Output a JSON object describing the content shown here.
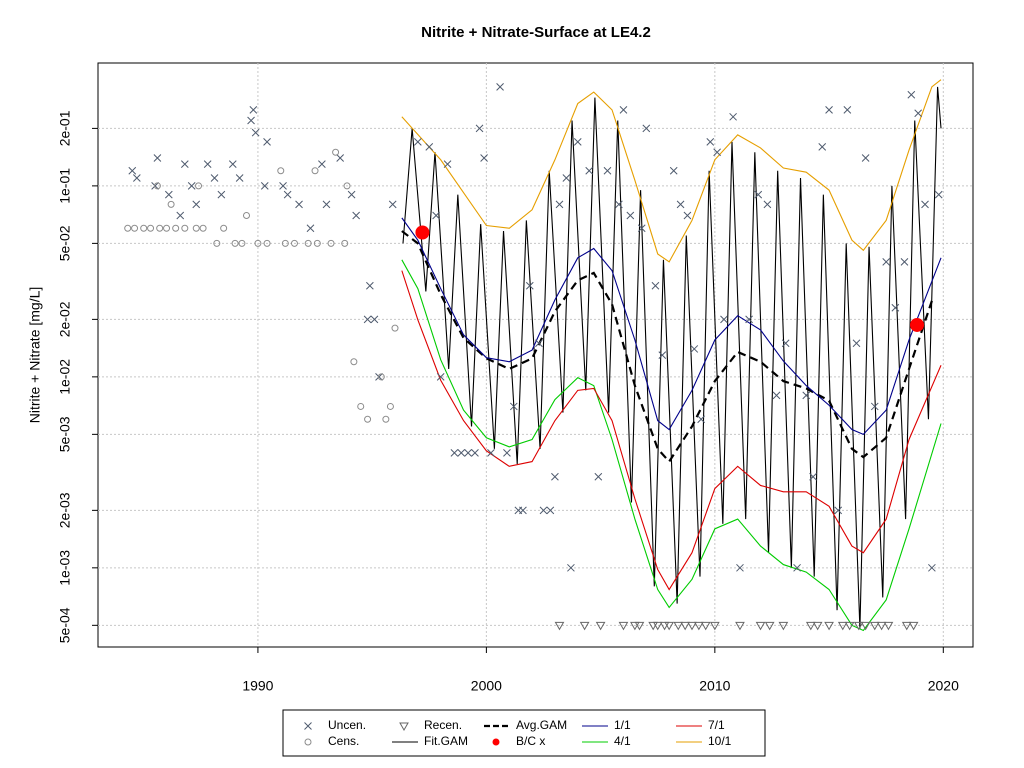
{
  "chart_data": {
    "type": "line",
    "title": "Nitrite + Nitrate-Surface at LE4.2",
    "y_label": "Nitrite + Nitrate [mg/L]",
    "log_y": true,
    "grid": true,
    "xlim": [
      1983,
      2021.3
    ],
    "ylim": [
      0.000385,
      0.44
    ],
    "xticks": [
      1990,
      2000,
      2010,
      2020
    ],
    "yticks": [
      {
        "value": 0.0005,
        "label": "5e-04"
      },
      {
        "value": 0.001,
        "label": "1e-03"
      },
      {
        "value": 0.002,
        "label": "2e-03"
      },
      {
        "value": 0.005,
        "label": "5e-03"
      },
      {
        "value": 0.01,
        "label": "1e-02"
      },
      {
        "value": 0.02,
        "label": "2e-02"
      },
      {
        "value": 0.05,
        "label": "5e-02"
      },
      {
        "value": 0.1,
        "label": "1e-01"
      },
      {
        "value": 0.2,
        "label": "2e-01"
      }
    ],
    "series": [
      {
        "name": "Uncen.",
        "color": "#4f5b6e",
        "style": "points",
        "marker": "x",
        "x": [
          1984.5,
          1984.7,
          1985.5,
          1985.6,
          1986.1,
          1986.6,
          1986.8,
          1987.1,
          1987.3,
          1987.8,
          1988.1,
          1988.4,
          1988.9,
          1989.2,
          1989.7,
          1989.8,
          1989.9,
          1990.3,
          1990.4,
          1991.1,
          1991.3,
          1991.8,
          1992.3,
          1992.8,
          1993.0,
          1993.6,
          1994.1,
          1994.3,
          1994.8,
          1994.9,
          1995.1,
          1995.3,
          1995.9,
          1997.0,
          1997.5,
          1997.8,
          1998.0,
          1998.3,
          1998.6,
          1998.9,
          1999.2,
          1999.5,
          1999.7,
          1999.9,
          2000.2,
          2000.6,
          2000.9,
          2001.2,
          2001.4,
          2001.6,
          2001.9,
          2002.3,
          2002.5,
          2002.8,
          2003.0,
          2003.2,
          2003.5,
          2003.7,
          2004.0,
          2004.5,
          2004.9,
          2005.3,
          2005.8,
          2006.0,
          2006.3,
          2006.8,
          2007.0,
          2007.4,
          2007.7,
          2008.2,
          2008.5,
          2008.8,
          2009.1,
          2009.4,
          2009.8,
          2010.1,
          2010.4,
          2010.8,
          2011.1,
          2011.5,
          2011.9,
          2012.3,
          2012.7,
          2013.1,
          2013.6,
          2014.0,
          2014.3,
          2014.7,
          2015.0,
          2015.4,
          2015.8,
          2016.2,
          2016.6,
          2017.0,
          2017.5,
          2017.9,
          2018.3,
          2018.6,
          2018.9,
          2019.2,
          2019.5,
          2019.8
        ],
        "values": [
          0.12,
          0.11,
          0.1,
          0.14,
          0.09,
          0.07,
          0.13,
          0.1,
          0.08,
          0.13,
          0.11,
          0.09,
          0.13,
          0.11,
          0.22,
          0.25,
          0.19,
          0.1,
          0.17,
          0.1,
          0.09,
          0.08,
          0.06,
          0.13,
          0.08,
          0.14,
          0.09,
          0.07,
          0.02,
          0.03,
          0.02,
          0.01,
          0.08,
          0.17,
          0.16,
          0.07,
          0.01,
          0.13,
          0.004,
          0.004,
          0.004,
          0.004,
          0.2,
          0.14,
          0.004,
          0.33,
          0.004,
          0.007,
          0.002,
          0.002,
          0.03,
          0.015,
          0.002,
          0.002,
          0.003,
          0.08,
          0.11,
          0.001,
          0.17,
          0.12,
          0.003,
          0.12,
          0.08,
          0.25,
          0.07,
          0.06,
          0.2,
          0.03,
          0.013,
          0.12,
          0.08,
          0.07,
          0.014,
          0.006,
          0.17,
          0.15,
          0.02,
          0.23,
          0.001,
          0.02,
          0.09,
          0.08,
          0.008,
          0.015,
          0.001,
          0.008,
          0.003,
          0.16,
          0.25,
          0.002,
          0.25,
          0.015,
          0.14,
          0.007,
          0.04,
          0.023,
          0.04,
          0.3,
          0.24,
          0.08,
          0.001,
          0.09
        ]
      },
      {
        "name": "Cens.",
        "color": "#8c8c8c",
        "style": "points",
        "marker": "circle",
        "x": [
          1984.3,
          1984.6,
          1985.0,
          1985.3,
          1985.7,
          1986.0,
          1986.4,
          1986.8,
          1987.3,
          1987.6,
          1988.2,
          1989.0,
          1989.3,
          1990.0,
          1990.4,
          1991.2,
          1991.6,
          1992.2,
          1992.6,
          1993.2,
          1993.8,
          1985.6,
          1986.2,
          1987.4,
          1988.5,
          1989.5,
          1991.0,
          1992.5,
          1993.4,
          1993.9,
          1994.2,
          1994.5,
          1994.8,
          1995.4,
          1995.6,
          1995.8,
          1996.0
        ],
        "values": [
          0.06,
          0.06,
          0.06,
          0.06,
          0.06,
          0.06,
          0.06,
          0.06,
          0.06,
          0.06,
          0.05,
          0.05,
          0.05,
          0.05,
          0.05,
          0.05,
          0.05,
          0.05,
          0.05,
          0.05,
          0.05,
          0.1,
          0.08,
          0.1,
          0.06,
          0.07,
          0.12,
          0.12,
          0.15,
          0.1,
          0.012,
          0.007,
          0.006,
          0.01,
          0.006,
          0.007,
          0.018
        ]
      },
      {
        "name": "Recen.",
        "color": "#666666",
        "style": "points",
        "marker": "triangle",
        "x": [
          2003.2,
          2004.3,
          2005.0,
          2006.0,
          2006.5,
          2006.7,
          2007.3,
          2007.5,
          2007.8,
          2008.0,
          2008.4,
          2008.7,
          2009.0,
          2009.3,
          2009.6,
          2010.0,
          2011.1,
          2012.0,
          2012.4,
          2013.0,
          2014.2,
          2014.5,
          2015.0,
          2015.6,
          2015.9,
          2016.3,
          2016.6,
          2017.0,
          2017.3,
          2017.6,
          2018.4,
          2018.7
        ],
        "values": [
          0.0005,
          0.0005,
          0.0005,
          0.0005,
          0.0005,
          0.0005,
          0.0005,
          0.0005,
          0.0005,
          0.0005,
          0.0005,
          0.0005,
          0.0005,
          0.0005,
          0.0005,
          0.0005,
          0.0005,
          0.0005,
          0.0005,
          0.0005,
          0.0005,
          0.0005,
          0.0005,
          0.0005,
          0.0005,
          0.0005,
          0.0005,
          0.0005,
          0.0005,
          0.0005,
          0.0005,
          0.0005
        ]
      },
      {
        "name": "Fit.GAM",
        "color": "#000000",
        "style": "line",
        "x": [
          1996.35,
          1996.75,
          1997.35,
          1997.75,
          1998.35,
          1998.75,
          1999.35,
          1999.75,
          2000.35,
          2000.75,
          2001.35,
          2001.75,
          2002.35,
          2002.75,
          2003.35,
          2003.75,
          2004.35,
          2004.75,
          2005.35,
          2005.75,
          2006.35,
          2006.75,
          2007.35,
          2007.75,
          2008.35,
          2008.75,
          2009.35,
          2009.75,
          2010.35,
          2010.75,
          2011.35,
          2011.75,
          2012.35,
          2012.75,
          2013.35,
          2013.75,
          2014.35,
          2014.75,
          2015.35,
          2015.75,
          2016.35,
          2016.75,
          2017.35,
          2017.75,
          2018.35,
          2018.75,
          2019.35,
          2019.75,
          2019.9
        ],
        "values": [
          0.05,
          0.2,
          0.028,
          0.15,
          0.011,
          0.09,
          0.0055,
          0.063,
          0.0042,
          0.058,
          0.0035,
          0.066,
          0.0042,
          0.12,
          0.0065,
          0.22,
          0.0085,
          0.29,
          0.0065,
          0.22,
          0.0022,
          0.095,
          0.0008,
          0.041,
          0.00065,
          0.055,
          0.0009,
          0.12,
          0.0017,
          0.17,
          0.0018,
          0.15,
          0.0012,
          0.12,
          0.001,
          0.11,
          0.0009,
          0.09,
          0.0006,
          0.05,
          0.00048,
          0.048,
          0.0007,
          0.1,
          0.0018,
          0.22,
          0.006,
          0.33,
          0.2
        ]
      },
      {
        "name": "Avg.GAM",
        "color": "#000000",
        "style": "line",
        "dash": true,
        "x": [
          1996.3,
          1997,
          1998,
          1999,
          2000,
          2001,
          2002,
          2003,
          2004,
          2004.7,
          2005.5,
          2006.5,
          2007.5,
          2008,
          2009,
          2010,
          2011,
          2012,
          2013,
          2014,
          2015,
          2016,
          2016.5,
          2017.5,
          2018.5,
          2019.5
        ],
        "values": [
          0.058,
          0.05,
          0.027,
          0.016,
          0.0125,
          0.011,
          0.0125,
          0.022,
          0.032,
          0.035,
          0.024,
          0.009,
          0.0042,
          0.0036,
          0.0055,
          0.0095,
          0.0135,
          0.012,
          0.0095,
          0.0087,
          0.0075,
          0.0042,
          0.0038,
          0.0048,
          0.011,
          0.025
        ]
      },
      {
        "name": "B/C x",
        "color": "#ff0000",
        "style": "points",
        "marker": "dot",
        "x": [
          1997.2,
          2018.85
        ],
        "values": [
          0.057,
          0.0187
        ]
      },
      {
        "name": "1/1",
        "color": "#00008b",
        "style": "line",
        "x": [
          1996.3,
          1997,
          1998,
          1999,
          2000,
          2001,
          2002,
          2003,
          2004,
          2004.7,
          2005.5,
          2006.5,
          2007.5,
          2008,
          2009,
          2010,
          2011,
          2012,
          2013,
          2014,
          2015,
          2016,
          2016.5,
          2017.5,
          2018.5,
          2019.9
        ],
        "values": [
          0.068,
          0.052,
          0.029,
          0.0166,
          0.0126,
          0.012,
          0.0138,
          0.0253,
          0.042,
          0.047,
          0.036,
          0.0156,
          0.0059,
          0.0053,
          0.0085,
          0.0156,
          0.0209,
          0.0176,
          0.0121,
          0.009,
          0.0071,
          0.0053,
          0.005,
          0.0067,
          0.0156,
          0.042
        ]
      },
      {
        "name": "4/1",
        "color": "#00cc00",
        "style": "line",
        "x": [
          1996.3,
          1997,
          1998,
          1999,
          2000,
          2001,
          2002,
          2003,
          2004,
          2004.7,
          2005.5,
          2006.5,
          2007.5,
          2008,
          2009,
          2010,
          2011,
          2012,
          2013,
          2014,
          2015,
          2016,
          2016.5,
          2017.5,
          2018.5,
          2019.9
        ],
        "values": [
          0.041,
          0.029,
          0.0123,
          0.0067,
          0.0048,
          0.0043,
          0.0047,
          0.0076,
          0.0099,
          0.009,
          0.0047,
          0.0018,
          0.00077,
          0.00062,
          0.00087,
          0.0016,
          0.0018,
          0.0013,
          0.00104,
          0.00095,
          0.00077,
          0.0005,
          0.00047,
          0.00068,
          0.0016,
          0.0057
        ]
      },
      {
        "name": "7/1",
        "color": "#dd0000",
        "style": "line",
        "x": [
          1996.3,
          1997,
          1998,
          1999,
          2000,
          2001,
          2002,
          2003,
          2004,
          2004.7,
          2005.5,
          2006.5,
          2007.5,
          2008,
          2009,
          2010,
          2011,
          2012,
          2013,
          2014,
          2015,
          2016,
          2016.5,
          2017.5,
          2018.5,
          2019.9
        ],
        "values": [
          0.036,
          0.0199,
          0.0096,
          0.0059,
          0.0041,
          0.0034,
          0.0036,
          0.0059,
          0.0085,
          0.0087,
          0.0059,
          0.0023,
          0.00098,
          0.00077,
          0.0012,
          0.0026,
          0.0034,
          0.0027,
          0.0025,
          0.0025,
          0.0021,
          0.0013,
          0.0012,
          0.0018,
          0.0047,
          0.0115
        ]
      },
      {
        "name": "10/1",
        "color": "#e69f00",
        "style": "line",
        "x": [
          1996.3,
          1998,
          2000,
          2001,
          2002,
          2003,
          2004,
          2004.7,
          2005.5,
          2006.5,
          2007.5,
          2008,
          2009,
          2010,
          2011,
          2012,
          2013,
          2014,
          2015,
          2016,
          2016.5,
          2017.5,
          2018.5,
          2019.5,
          2019.9
        ],
        "values": [
          0.23,
          0.137,
          0.062,
          0.06,
          0.075,
          0.137,
          0.27,
          0.31,
          0.25,
          0.107,
          0.044,
          0.04,
          0.066,
          0.137,
          0.185,
          0.158,
          0.124,
          0.118,
          0.095,
          0.052,
          0.046,
          0.066,
          0.154,
          0.33,
          0.36
        ]
      }
    ]
  }
}
